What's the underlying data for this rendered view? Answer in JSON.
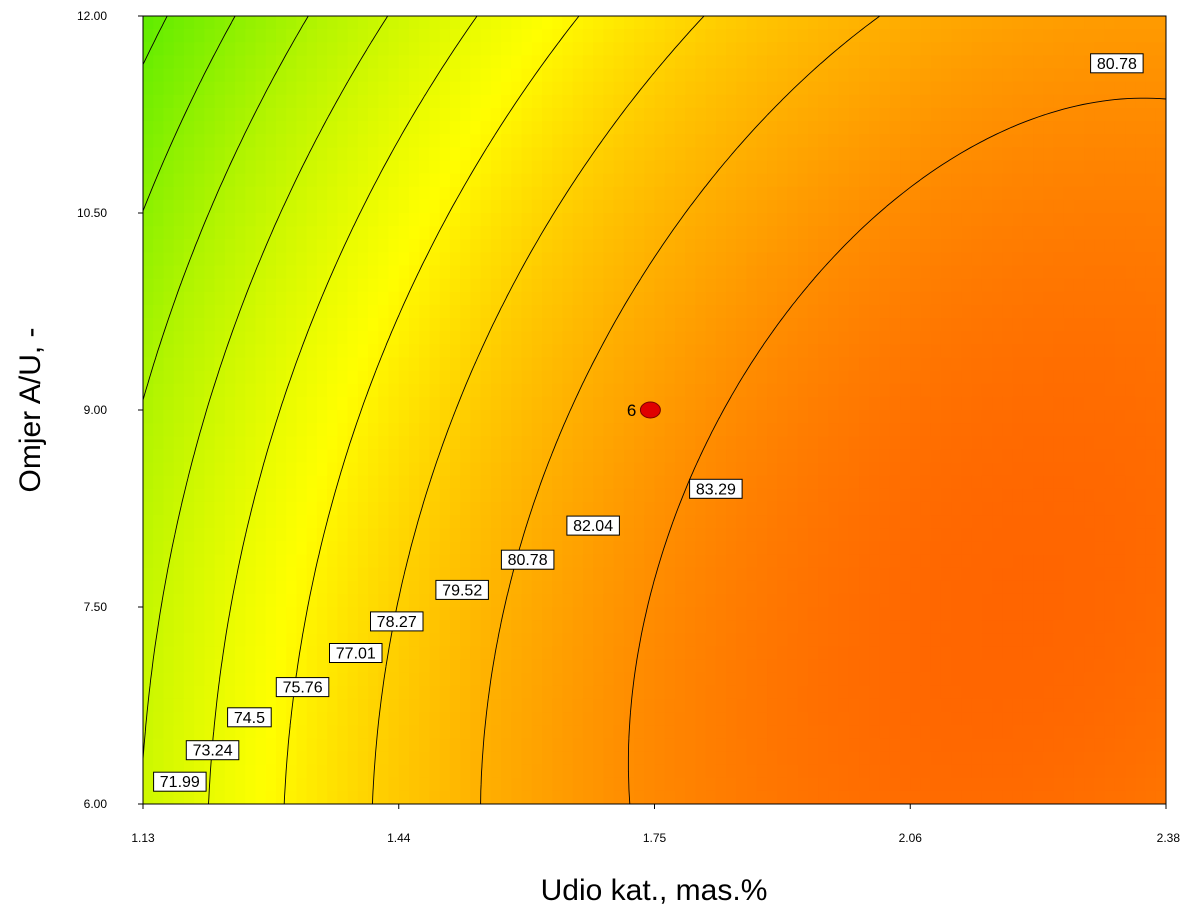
{
  "chart_data": {
    "type": "contour",
    "xlabel": "Udio kat., mas.%",
    "ylabel": "Omjer A/U, -",
    "xlim": [
      1.13,
      2.38
    ],
    "ylim": [
      6.0,
      12.0
    ],
    "x_ticks": [
      "1.13",
      "1.44",
      "1.75",
      "2.06",
      "2.38"
    ],
    "y_ticks": [
      "6.00",
      "7.50",
      "9.00",
      "10.50",
      "12.00"
    ],
    "color_scale": [
      "#22e600",
      "#ffff00",
      "#ffc800",
      "#ff8c00",
      "#ff6400"
    ],
    "grid": false,
    "contour_levels": [
      {
        "label": "71.99",
        "x": 1.175,
        "y": 6.17
      },
      {
        "label": "73.24",
        "x": 1.215,
        "y": 6.41
      },
      {
        "label": "74.5",
        "x": 1.26,
        "y": 6.66
      },
      {
        "label": "75.76",
        "x": 1.325,
        "y": 6.89
      },
      {
        "label": "77.01",
        "x": 1.39,
        "y": 7.15
      },
      {
        "label": "78.27",
        "x": 1.44,
        "y": 7.39
      },
      {
        "label": "79.52",
        "x": 1.52,
        "y": 7.63
      },
      {
        "label": "80.78",
        "x": 1.6,
        "y": 7.86
      },
      {
        "label": "82.04",
        "x": 1.68,
        "y": 8.12
      },
      {
        "label": "83.29",
        "x": 1.83,
        "y": 8.4
      },
      {
        "label": "80.78",
        "x": 2.32,
        "y": 11.64
      }
    ],
    "design_point": {
      "label": "6",
      "x": 1.75,
      "y": 9.0,
      "color": "#e00000"
    }
  }
}
